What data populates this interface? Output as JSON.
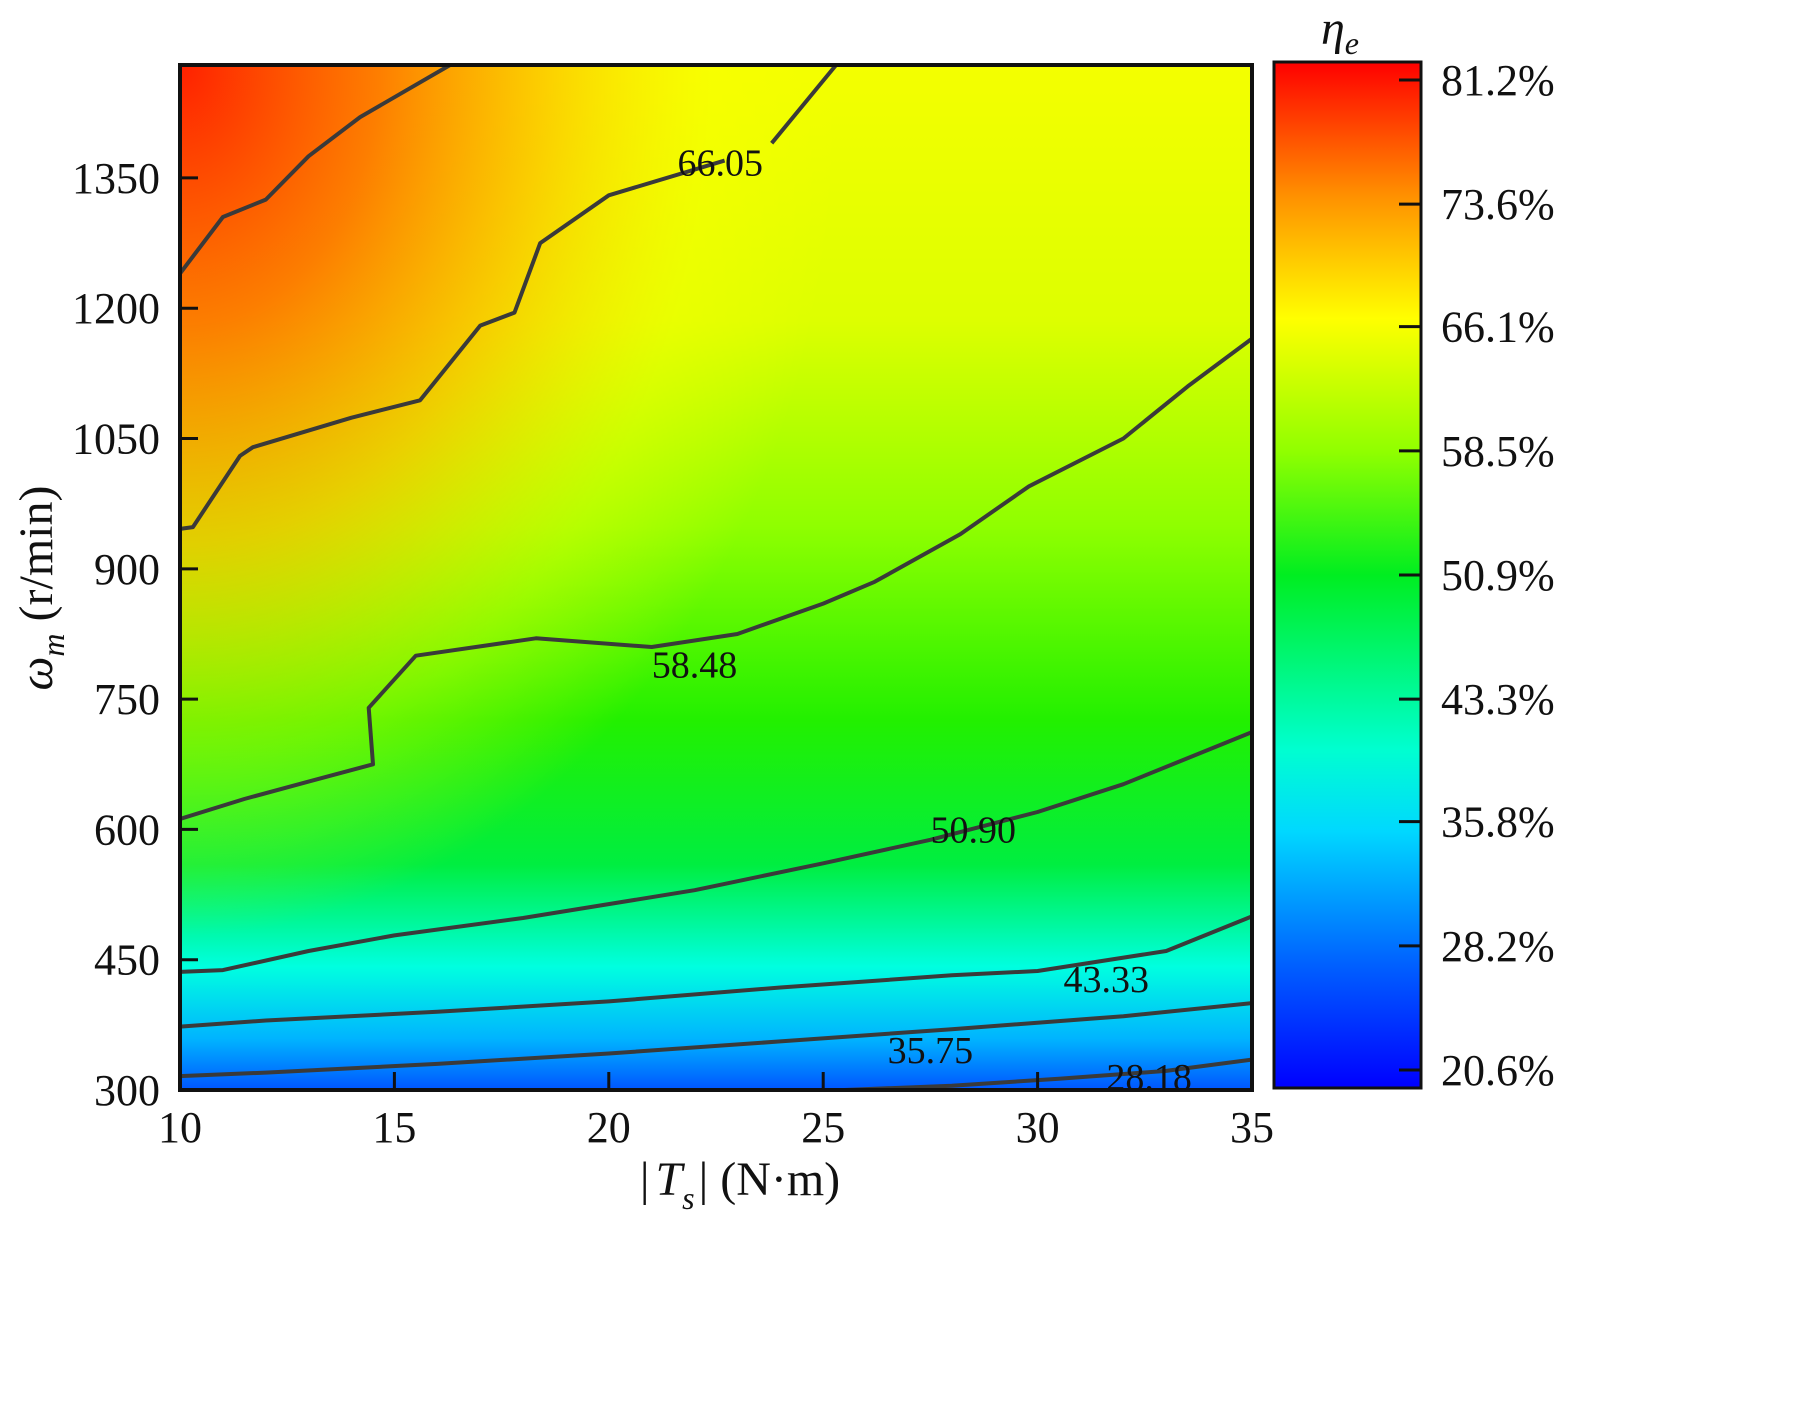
{
  "chart_data": {
    "type": "heatmap",
    "title": "",
    "xlabel": "|Ts| (N·m)",
    "ylabel": "ωm (r/min)",
    "xlabel_parts": {
      "bar_left": "|",
      "symbol": "T",
      "subscript": "s",
      "bar_right": "|",
      "unit": " (N·m)"
    },
    "ylabel_parts": {
      "symbol": "ω",
      "subscript": "m",
      "unit": " (r/min)"
    },
    "xlim": [
      10,
      35
    ],
    "ylim": [
      300,
      1480
    ],
    "x_ticks": [
      10,
      15,
      20,
      25,
      30,
      35
    ],
    "x_tick_labels": [
      "10",
      "15",
      "20",
      "25",
      "30",
      "35"
    ],
    "y_ticks": [
      300,
      450,
      600,
      750,
      900,
      1050,
      1200,
      1350
    ],
    "y_tick_labels": [
      "300",
      "450",
      "600",
      "750",
      "900",
      "1050",
      "1200",
      "1350"
    ],
    "grid": false,
    "colorbar": {
      "title": "ηe",
      "title_parts": {
        "symbol": "η",
        "subscript": "e"
      },
      "range": [
        20.6,
        81.2
      ],
      "ticks": [
        81.2,
        73.6,
        66.1,
        58.5,
        50.9,
        43.3,
        35.8,
        28.2,
        20.6
      ],
      "tick_labels": [
        "81.2%",
        "73.6%",
        "66.1%",
        "58.5%",
        "50.9%",
        "43.3%",
        "35.8%",
        "28.2%",
        "20.6%"
      ],
      "colormap": "jet"
    },
    "contours": [
      {
        "level": 66.05,
        "label": "66.05",
        "label_at": [
          22.6,
          1368
        ],
        "path": [
          [
            10,
            1240
          ],
          [
            11,
            1305
          ],
          [
            12,
            1325
          ],
          [
            12.2,
            1335
          ],
          [
            13,
            1375
          ],
          [
            14.2,
            1420
          ],
          [
            16.3,
            1480
          ]
        ]
      },
      {
        "level": 66.05,
        "label": "66.05",
        "label_at": [
          22.6,
          1368
        ],
        "path": [
          [
            10,
            946
          ],
          [
            10.3,
            948
          ],
          [
            11.4,
            1030
          ],
          [
            11.7,
            1040
          ],
          [
            14,
            1074
          ],
          [
            15.6,
            1094
          ],
          [
            17,
            1180
          ],
          [
            17.8,
            1195
          ],
          [
            18.4,
            1275
          ],
          [
            20,
            1330
          ],
          [
            22.7,
            1370
          ]
        ]
      },
      {
        "level": 66.05,
        "label": "66.05",
        "label_at": [
          22.6,
          1368
        ],
        "path": [
          [
            23.8,
            1390
          ],
          [
            25.3,
            1480
          ]
        ]
      },
      {
        "level": 58.48,
        "label": "58.48",
        "label_at": [
          22,
          790
        ],
        "path": [
          [
            10,
            612
          ],
          [
            11.5,
            635
          ],
          [
            13,
            655
          ],
          [
            14.5,
            675
          ],
          [
            14.4,
            740
          ],
          [
            15.5,
            800
          ],
          [
            18.3,
            820
          ],
          [
            21,
            810
          ],
          [
            23,
            825
          ],
          [
            25,
            860
          ],
          [
            26.2,
            885
          ],
          [
            28.2,
            940
          ],
          [
            29.8,
            995
          ],
          [
            32,
            1050
          ],
          [
            33.5,
            1110
          ],
          [
            35,
            1165
          ]
        ]
      },
      {
        "level": 50.9,
        "label": "50.90",
        "label_at": [
          28.5,
          600
        ],
        "path": [
          [
            10,
            436
          ],
          [
            11,
            438
          ],
          [
            13,
            460
          ],
          [
            15,
            478
          ],
          [
            18,
            498
          ],
          [
            22,
            530
          ],
          [
            25,
            561
          ],
          [
            27.5,
            588
          ],
          [
            30,
            620
          ],
          [
            32,
            652
          ],
          [
            35,
            712
          ]
        ]
      },
      {
        "level": 43.33,
        "label": "43.33",
        "label_at": [
          31.6,
          428
        ],
        "path": [
          [
            10,
            373
          ],
          [
            12,
            380
          ],
          [
            16,
            390
          ],
          [
            20,
            402
          ],
          [
            24,
            418
          ],
          [
            28,
            432
          ],
          [
            30,
            437
          ],
          [
            33,
            460
          ],
          [
            35,
            500
          ]
        ]
      },
      {
        "level": 35.75,
        "label": "35.75",
        "label_at": [
          27.5,
          346
        ],
        "path": [
          [
            10,
            316
          ],
          [
            12,
            320
          ],
          [
            16,
            330
          ],
          [
            20,
            342
          ],
          [
            24,
            356
          ],
          [
            28,
            370
          ],
          [
            32,
            385
          ],
          [
            35,
            400
          ]
        ]
      },
      {
        "level": 28.18,
        "label": "28.18",
        "label_at": [
          32.6,
          315
        ],
        "path": [
          [
            25.5,
            300
          ],
          [
            28,
            305
          ],
          [
            30.5,
            313
          ],
          [
            33,
            322
          ],
          [
            35,
            335
          ]
        ]
      }
    ]
  }
}
